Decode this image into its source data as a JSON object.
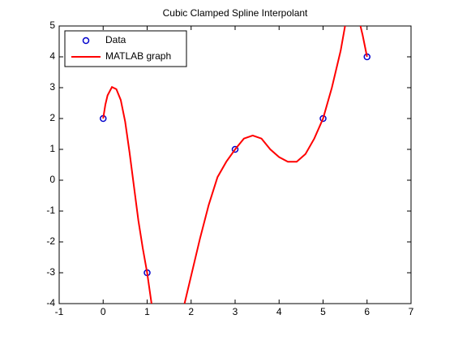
{
  "chart_data": {
    "type": "line",
    "title": "Cubic Clamped Spline Interpolant",
    "xlim": [
      -1,
      7
    ],
    "xticks": [
      -1,
      0,
      1,
      2,
      3,
      4,
      5,
      6,
      7
    ],
    "ylim": [
      -4,
      5
    ],
    "yticks": [
      -4,
      -3,
      -2,
      -1,
      0,
      1,
      2,
      3,
      4,
      5
    ],
    "legend": "upper left",
    "series": [
      {
        "name": "Data",
        "color": "#0000cc",
        "marker": "circle",
        "line": false,
        "x": [
          0,
          1,
          3,
          5,
          6
        ],
        "values": [
          2,
          -3,
          1,
          2,
          4
        ]
      },
      {
        "name": "MATLAB graph",
        "color": "#ff0000",
        "marker": "none",
        "line": true,
        "x": [
          0,
          0.05,
          0.1,
          0.2,
          0.3,
          0.4,
          0.5,
          0.6,
          0.7,
          0.8,
          0.9,
          1.0,
          1.1,
          1.5,
          1.85,
          2.0,
          2.2,
          2.4,
          2.6,
          2.8,
          3.0,
          3.2,
          3.4,
          3.6,
          3.8,
          4.0,
          4.2,
          4.4,
          4.6,
          4.8,
          5.0,
          5.2,
          5.4,
          5.5,
          5.7,
          5.85,
          5.9,
          6.0
        ],
        "values": [
          2,
          2.45,
          2.75,
          3.02,
          2.95,
          2.6,
          1.9,
          0.9,
          -0.2,
          -1.3,
          -2.2,
          -3,
          -4,
          null,
          -4,
          -3.1,
          -1.9,
          -0.8,
          0.1,
          0.6,
          1,
          1.35,
          1.45,
          1.35,
          1.0,
          0.75,
          0.6,
          0.6,
          0.85,
          1.35,
          2,
          3.0,
          4.2,
          5,
          null,
          5,
          4.7,
          4.0
        ]
      }
    ]
  }
}
